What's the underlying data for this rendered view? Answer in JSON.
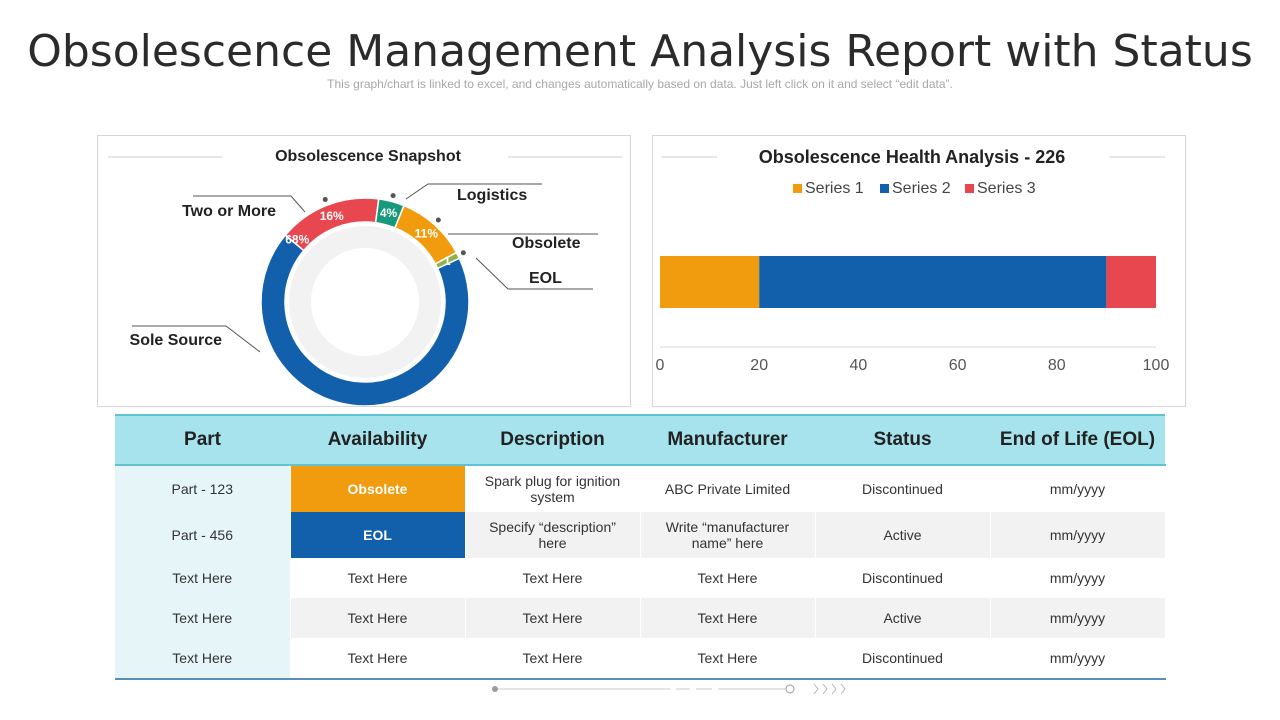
{
  "header": {
    "title": "Obsolescence Management Analysis Report with Status",
    "subtitle": "This graph/chart is linked to excel, and changes automatically based on data. Just left click on it and select “edit data”."
  },
  "colors": {
    "sole_source": "#1260ac",
    "two_or_more": "#e8474f",
    "logistics": "#179a7b",
    "obsolete": "#f09c0e",
    "eol": "#8fb34a",
    "series1": "#f09c0e",
    "series2": "#1260ac",
    "series3": "#e8474f",
    "table_header": "#a7e3ec"
  },
  "chart_data": [
    {
      "type": "pie",
      "title": "Obsolescence Snapshot",
      "slices": [
        {
          "label": "Sole Source",
          "value": 68,
          "value_label": "68%",
          "color": "#1260ac"
        },
        {
          "label": "Two or More",
          "value": 16,
          "value_label": "16%",
          "color": "#e8474f"
        },
        {
          "label": "Logistics",
          "value": 4,
          "value_label": "4%",
          "color": "#179a7b"
        },
        {
          "label": "Obsolete",
          "value": 11,
          "value_label": "11%",
          "color": "#f09c0e"
        },
        {
          "label": "EOL",
          "value": 1,
          "value_label": "1",
          "color": "#8fb34a"
        }
      ]
    },
    {
      "type": "bar",
      "orientation": "horizontal",
      "stacked": true,
      "title": "Obsolescence Health Analysis - 226",
      "legend_position": "top",
      "series": [
        {
          "name": "Series 1",
          "values": [
            20
          ],
          "color": "#f09c0e"
        },
        {
          "name": "Series 2",
          "values": [
            70
          ],
          "color": "#1260ac"
        },
        {
          "name": "Series 3",
          "values": [
            10
          ],
          "color": "#e8474f"
        }
      ],
      "xlim": [
        0,
        100
      ],
      "xticks": [
        "0",
        "20",
        "40",
        "60",
        "80",
        "100"
      ]
    }
  ],
  "table": {
    "headers": [
      "Part",
      "Availability",
      "Description",
      "Manufacturer",
      "Status",
      "End of Life (EOL)"
    ],
    "rows": [
      {
        "part": "Part - 123",
        "availability": "Obsolete",
        "description": "Spark plug for ignition system",
        "manufacturer": "ABC Private Limited",
        "status": "Discontinued",
        "eol": "mm/yyyy"
      },
      {
        "part": "Part - 456",
        "availability": "EOL",
        "description": "Specify “description” here",
        "manufacturer": "Write “manufacturer name” here",
        "status": "Active",
        "eol": "mm/yyyy"
      },
      {
        "part": "Text Here",
        "availability": "Text Here",
        "description": "Text Here",
        "manufacturer": "Text Here",
        "status": "Discontinued",
        "eol": "mm/yyyy"
      },
      {
        "part": "Text Here",
        "availability": "Text Here",
        "description": "Text Here",
        "manufacturer": "Text Here",
        "status": "Active",
        "eol": "mm/yyyy"
      },
      {
        "part": "Text Here",
        "availability": "Text Here",
        "description": "Text Here",
        "manufacturer": "Text Here",
        "status": "Discontinued",
        "eol": "mm/yyyy"
      }
    ]
  }
}
